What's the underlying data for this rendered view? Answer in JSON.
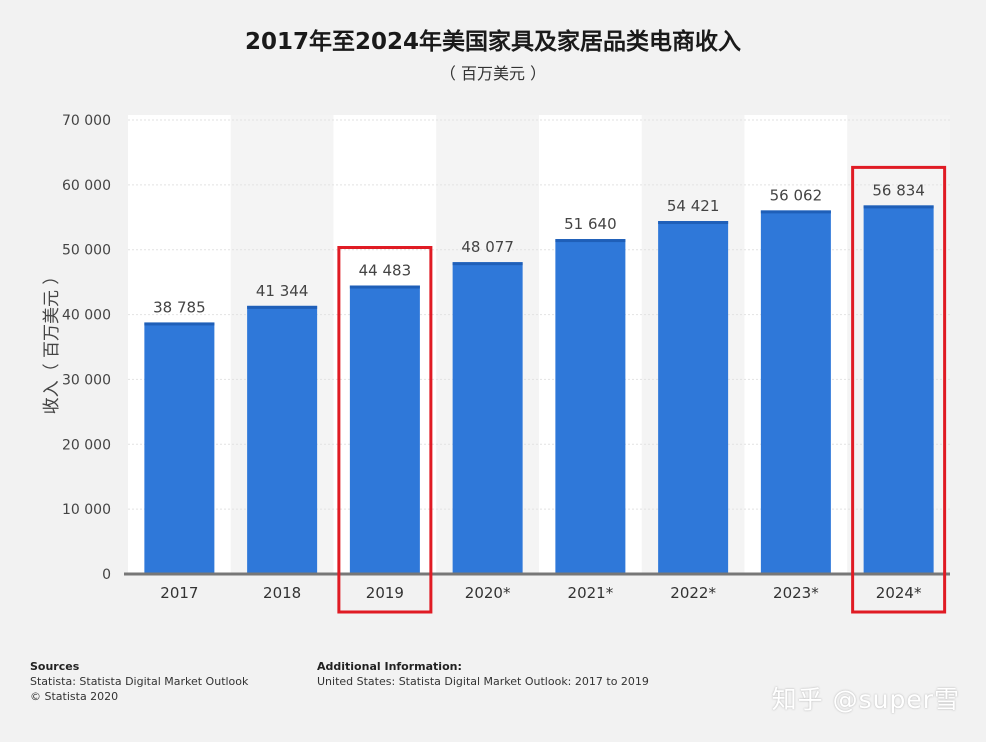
{
  "title": "2017年至2024年美国家具及家居品类电商收入",
  "subtitle": "（ 百万美元 ）",
  "chart_data": {
    "type": "bar",
    "title": "2017年至2024年美国家具及家居品类电商收入",
    "subtitle": "（ 百万美元 ）",
    "ylabel": "收入（ 百万美元 ）",
    "xlabel": "",
    "categories": [
      "2017",
      "2018",
      "2019",
      "2020*",
      "2021*",
      "2022*",
      "2023*",
      "2024*"
    ],
    "values": [
      38785,
      41344,
      44483,
      48077,
      51640,
      54421,
      56062,
      56834
    ],
    "value_labels": [
      "38 785",
      "41 344",
      "44 483",
      "48 077",
      "51 640",
      "54 421",
      "56 062",
      "56 834"
    ],
    "ylim": [
      0,
      70000
    ],
    "yticks": [
      0,
      10000,
      20000,
      30000,
      40000,
      50000,
      60000,
      70000
    ],
    "ytick_labels": [
      "0",
      "10 000",
      "20 000",
      "30 000",
      "40 000",
      "50 000",
      "60 000",
      "70 000"
    ],
    "grid": true,
    "bar_color": "#2f78d9",
    "highlight_color": "#e01b24",
    "highlighted_categories": [
      "2019",
      "2024*"
    ]
  },
  "footer": {
    "sources_heading": "Sources",
    "sources_line1": "Statista: Statista Digital Market Outlook",
    "sources_line2": "© Statista 2020",
    "info_heading": "Additional Information:",
    "info_line1": "United States: Statista Digital Market Outlook: 2017 to 2019"
  },
  "watermark": "知乎 @super雪"
}
